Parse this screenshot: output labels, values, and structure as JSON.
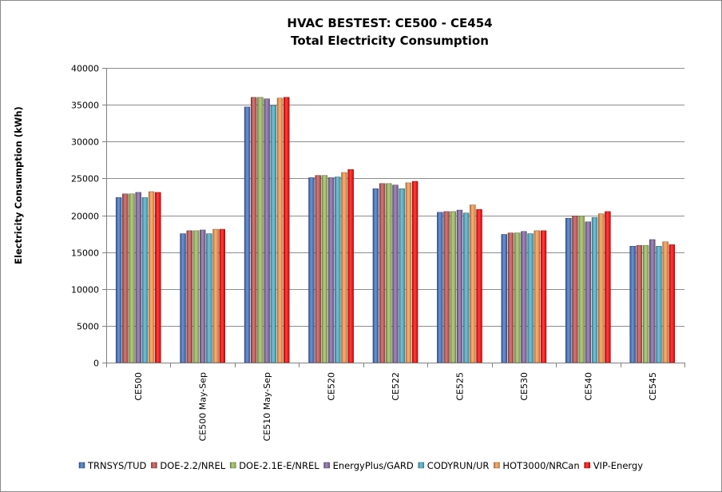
{
  "chart_data": {
    "type": "bar",
    "title": "HVAC BESTEST: CE500 - CE454",
    "subtitle": "Total Electricity Consumption",
    "ylabel": "Electricity Consumption (kWh)",
    "xlabel": "",
    "ylim": [
      0,
      40000
    ],
    "yticks": [
      0,
      5000,
      10000,
      15000,
      20000,
      25000,
      30000,
      35000,
      40000
    ],
    "grid": true,
    "legend_position": "bottom",
    "categories": [
      "CE500",
      "CE500 May-Sep",
      "CE510 May-Sep",
      "CE520",
      "CE522",
      "CE525",
      "CE530",
      "CE540",
      "CE545"
    ],
    "series": [
      {
        "name": "TRNSYS/TUD",
        "color": "#3f6fc1",
        "values": [
          22400,
          17500,
          34700,
          25100,
          23600,
          20400,
          17400,
          19600,
          15800
        ]
      },
      {
        "name": "DOE-2.2/NREL",
        "color": "#c0504d",
        "values": [
          22900,
          17900,
          36000,
          25400,
          24300,
          20500,
          17600,
          19900,
          15900
        ]
      },
      {
        "name": "DOE-2.1E-E/NREL",
        "color": "#9bbb59",
        "values": [
          22900,
          17900,
          36000,
          25400,
          24300,
          20500,
          17600,
          19900,
          15900
        ]
      },
      {
        "name": "EnergyPlus/GARD",
        "color": "#8064a2",
        "values": [
          23100,
          18000,
          35800,
          25100,
          24100,
          20700,
          17800,
          19100,
          16700
        ]
      },
      {
        "name": "CODYRUN/UR",
        "color": "#4bacc6",
        "values": [
          22400,
          17500,
          34900,
          25200,
          23600,
          20300,
          17500,
          19700,
          15800
        ]
      },
      {
        "name": "HOT3000/NRCan",
        "color": "#f79646",
        "values": [
          23200,
          18100,
          35900,
          25800,
          24400,
          21400,
          17900,
          20200,
          16400
        ]
      },
      {
        "name": "VIP-Energy",
        "color": "#ff0000",
        "values": [
          23100,
          18100,
          36000,
          26200,
          24600,
          20800,
          17900,
          20500,
          16000
        ]
      }
    ]
  }
}
